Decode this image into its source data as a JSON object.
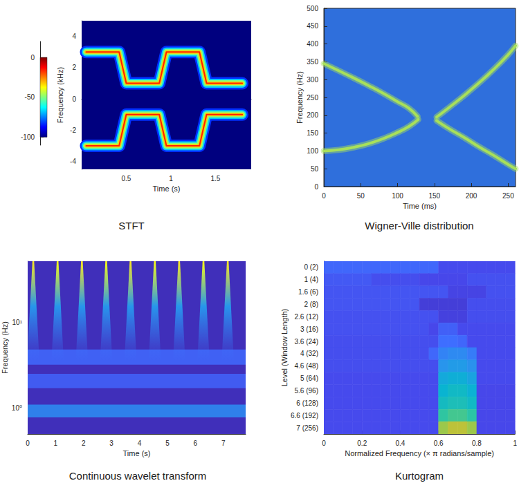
{
  "chart_data": [
    {
      "type": "line",
      "title": "STFT",
      "xlabel": "Time (s)",
      "ylabel": "Frequency (kHz)",
      "xlim": [
        0,
        1.9
      ],
      "xticks": [
        0.5,
        1,
        1.5
      ],
      "ylim": [
        -4.5,
        5
      ],
      "yticks": [
        -4,
        -2,
        0,
        2,
        4
      ],
      "zlim": [
        -110,
        20
      ],
      "zticks": [
        -100,
        -50,
        0
      ],
      "floor_db": -100,
      "ridge_db": 0,
      "series": [
        {
          "x": [
            0.05,
            0.42,
            0.5,
            0.87,
            0.95,
            1.32,
            1.4,
            1.8
          ],
          "values": [
            3,
            3,
            1,
            1,
            3,
            3,
            1,
            1
          ]
        },
        {
          "x": [
            0.05,
            0.42,
            0.5,
            0.87,
            0.95,
            1.32,
            1.4,
            1.8
          ],
          "values": [
            -3,
            -3,
            -1,
            -1,
            -3,
            -3,
            -1,
            -1
          ]
        }
      ]
    },
    {
      "type": "line",
      "title": "Wigner-Ville distribution",
      "xlabel": "Time (ms)",
      "ylabel": "Frequency (Hz)",
      "xlim": [
        0,
        260
      ],
      "xticks": [
        0,
        50,
        100,
        150,
        200,
        250
      ],
      "ylim": [
        0,
        500
      ],
      "yticks": [
        0,
        50,
        100,
        150,
        200,
        250,
        300,
        350,
        400,
        450,
        500
      ],
      "color": "#a8e05a",
      "series": [
        {
          "x": [
            0,
            20,
            40,
            60,
            80,
            100,
            115,
            128
          ],
          "values": [
            100,
            103,
            110,
            120,
            134,
            152,
            168,
            188
          ]
        },
        {
          "x": [
            0,
            20,
            40,
            60,
            80,
            100,
            115,
            127
          ],
          "values": [
            345,
            325,
            305,
            284,
            262,
            238,
            220,
            197
          ]
        },
        {
          "x": [
            153,
            170,
            190,
            210,
            230,
            250,
            260
          ],
          "values": [
            195,
            222,
            255,
            290,
            328,
            370,
            395
          ]
        },
        {
          "x": [
            153,
            170,
            190,
            210,
            230,
            250,
            260
          ],
          "values": [
            185,
            162,
            138,
            112,
            88,
            62,
            50
          ]
        }
      ]
    },
    {
      "type": "heatmap",
      "title": "Continuous wavelet transform",
      "xlabel": "Time (s)",
      "ylabel": "Frequency (Hz)",
      "log": "y",
      "xlim": [
        0,
        7.8
      ],
      "xticks": [
        0,
        1,
        2,
        3,
        4,
        5,
        6,
        7
      ],
      "ylim": [
        0.5,
        51
      ],
      "yticks": [
        {
          "value": 1,
          "label": "10⁰"
        },
        {
          "value": 10,
          "label": "10¹"
        }
      ],
      "clim": [
        0,
        1
      ],
      "background": 0.03,
      "bands": [
        {
          "freq_range": [
            0.78,
            1.1
          ],
          "magnitude": 0.3
        },
        {
          "freq_range": [
            1.7,
            2.5
          ],
          "magnitude": 0.18
        },
        {
          "freq_range": [
            3.2,
            4.8
          ],
          "magnitude": 0.2
        }
      ],
      "spike_times": [
        0.2,
        1.07,
        1.94,
        2.81,
        3.68,
        4.55,
        5.42,
        6.29,
        7.16
      ],
      "spike_magnitudes": [
        0.95,
        1,
        0.95,
        1,
        0.95,
        1,
        0.95,
        1,
        0.95
      ],
      "spike_freq_range": [
        3.5,
        51
      ]
    },
    {
      "type": "heatmap",
      "title": "Kurtogram",
      "xlabel": "Normalized Frequency (× π radians/sample)",
      "ylabel": "Level (Window Length)",
      "categories": [
        "0 (2)",
        "1 (4)",
        "1.6 (6)",
        "2 (8)",
        "2.6 (12)",
        "3 (16)",
        "3.6 (24)",
        "4 (32)",
        "4.6 (48)",
        "5 (64)",
        "5.6 (96)",
        "6 (128)",
        "6.6 (192)",
        "7 (256)"
      ],
      "xlim": [
        0,
        1
      ],
      "xticks": [
        0,
        0.2,
        0.4,
        0.6,
        0.8,
        1
      ],
      "xbins": [
        0,
        0.05,
        0.1,
        0.15,
        0.2,
        0.25,
        0.3,
        0.35,
        0.4,
        0.45,
        0.5,
        0.55,
        0.6,
        0.65,
        0.7,
        0.75,
        0.8,
        0.85,
        0.9,
        0.95,
        1
      ],
      "clim": [
        0,
        1
      ],
      "cells": [
        [
          0.2,
          0.2,
          0.2,
          0.2,
          0.2,
          0.2,
          0.2,
          0.2,
          0.2,
          0.2,
          0.2,
          0.2,
          0.12,
          0.12,
          0.12,
          0.12,
          0.12,
          0.12,
          0.12,
          0.12
        ],
        [
          0.16,
          0.16,
          0.16,
          0.16,
          0.16,
          0.13,
          0.13,
          0.13,
          0.13,
          0.13,
          0.11,
          0.11,
          0.11,
          0.11,
          0.11,
          0.14,
          0.14,
          0.14,
          0.14,
          0.14
        ],
        [
          0.15,
          0.15,
          0.15,
          0.15,
          0.15,
          0.15,
          0.15,
          0.15,
          0.15,
          0.15,
          0.15,
          0.15,
          0.15,
          0.1,
          0.1,
          0.1,
          0.1,
          0.14,
          0.14,
          0.14
        ],
        [
          0.15,
          0.15,
          0.15,
          0.15,
          0.15,
          0.15,
          0.15,
          0.15,
          0.15,
          0.15,
          0.08,
          0.08,
          0.08,
          0.08,
          0.08,
          0.13,
          0.13,
          0.13,
          0.13,
          0.13
        ],
        [
          0.14,
          0.14,
          0.14,
          0.14,
          0.14,
          0.14,
          0.14,
          0.14,
          0.14,
          0.14,
          0.14,
          0.14,
          0.09,
          0.09,
          0.09,
          0.13,
          0.13,
          0.13,
          0.13,
          0.13
        ],
        [
          0.14,
          0.14,
          0.14,
          0.14,
          0.14,
          0.14,
          0.14,
          0.14,
          0.14,
          0.14,
          0.14,
          0.11,
          0.18,
          0.18,
          0.12,
          0.12,
          0.12,
          0.12,
          0.12,
          0.12
        ],
        [
          0.13,
          0.13,
          0.13,
          0.13,
          0.13,
          0.13,
          0.13,
          0.13,
          0.13,
          0.13,
          0.13,
          0.13,
          0.22,
          0.22,
          0.2,
          0.12,
          0.12,
          0.12,
          0.12,
          0.12
        ],
        [
          0.13,
          0.13,
          0.13,
          0.13,
          0.13,
          0.13,
          0.13,
          0.13,
          0.13,
          0.13,
          0.13,
          0.2,
          0.28,
          0.3,
          0.3,
          0.26,
          0.12,
          0.12,
          0.12,
          0.12
        ],
        [
          0.13,
          0.13,
          0.13,
          0.13,
          0.13,
          0.13,
          0.13,
          0.13,
          0.13,
          0.13,
          0.13,
          0.13,
          0.33,
          0.35,
          0.35,
          0.32,
          0.12,
          0.12,
          0.12,
          0.12
        ],
        [
          0.12,
          0.12,
          0.12,
          0.12,
          0.12,
          0.12,
          0.12,
          0.12,
          0.12,
          0.12,
          0.12,
          0.12,
          0.4,
          0.42,
          0.42,
          0.38,
          0.12,
          0.12,
          0.12,
          0.12
        ],
        [
          0.12,
          0.12,
          0.12,
          0.12,
          0.12,
          0.12,
          0.12,
          0.12,
          0.12,
          0.12,
          0.12,
          0.12,
          0.44,
          0.47,
          0.47,
          0.43,
          0.11,
          0.11,
          0.11,
          0.11
        ],
        [
          0.12,
          0.12,
          0.12,
          0.12,
          0.12,
          0.12,
          0.12,
          0.12,
          0.12,
          0.12,
          0.12,
          0.12,
          0.48,
          0.5,
          0.5,
          0.47,
          0.11,
          0.11,
          0.11,
          0.11
        ],
        [
          0.12,
          0.12,
          0.12,
          0.12,
          0.12,
          0.12,
          0.12,
          0.12,
          0.12,
          0.12,
          0.12,
          0.12,
          0.55,
          0.58,
          0.58,
          0.54,
          0.11,
          0.11,
          0.11,
          0.11
        ],
        [
          0.12,
          0.12,
          0.12,
          0.12,
          0.12,
          0.12,
          0.12,
          0.12,
          0.12,
          0.12,
          0.12,
          0.12,
          0.7,
          0.74,
          0.74,
          0.7,
          0.11,
          0.11,
          0.11,
          0.11
        ]
      ]
    }
  ]
}
